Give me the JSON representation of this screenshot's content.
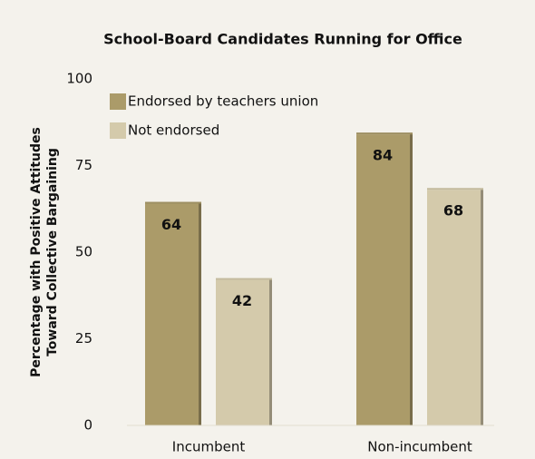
{
  "chart_data": {
    "type": "bar",
    "title": "School-Board Candidates Running for Office",
    "ylabel": [
      "Percentage with Positive Attitudes",
      "Toward Collective Bargaining"
    ],
    "categories": [
      "Incumbent",
      "Non-incumbent"
    ],
    "series": [
      {
        "name": "Endorsed by teachers union",
        "color": "#ab9b69",
        "values": [
          64,
          84
        ]
      },
      {
        "name": "Not endorsed",
        "color": "#d4caab",
        "values": [
          42,
          68
        ]
      }
    ],
    "ylim": [
      0,
      100
    ],
    "yticks": [
      0,
      25,
      50,
      75,
      100
    ],
    "grid": false,
    "legend": "upper left"
  }
}
